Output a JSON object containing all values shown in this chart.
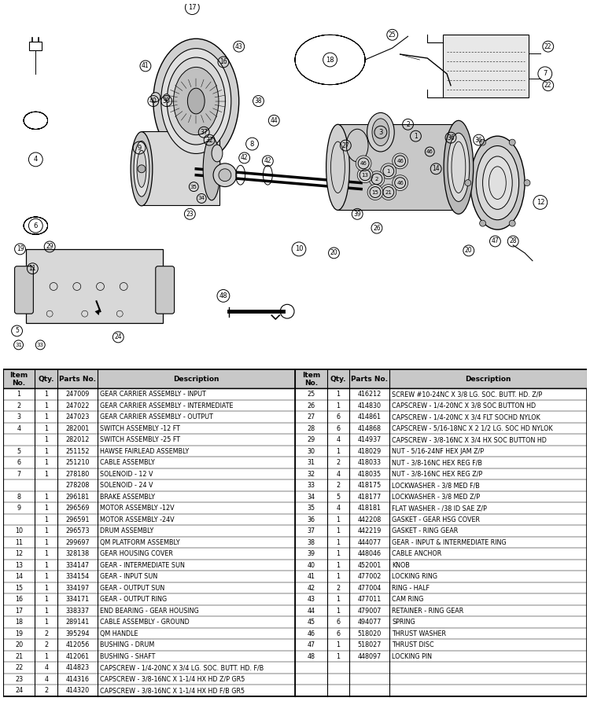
{
  "parts": [
    [
      1,
      1,
      "247009",
      "GEAR CARRIER ASSEMBLY - INPUT",
      25,
      1,
      "416212",
      "SCREW #10-24NC X 3/8 LG. SOC. BUTT. HD. Z/P"
    ],
    [
      2,
      1,
      "247022",
      "GEAR CARRIER ASSEMBLY - INTERMEDIATE",
      26,
      1,
      "414830",
      "CAPSCREW - 1/4-20NC X 3/8 SOC BUTTON HD"
    ],
    [
      3,
      1,
      "247023",
      "GEAR CARRIER ASSEMBLY - OUTPUT",
      27,
      6,
      "414861",
      "CAPSCREW - 1/4-20NC X 3/4 FLT SOCHD NYLOK"
    ],
    [
      "4",
      1,
      "282001",
      "SWITCH ASSEMBLY -12 FT",
      28,
      6,
      "414868",
      "CAPSCREW - 5/16-18NC X 2 1/2 LG. SOC HD NYLOK"
    ],
    [
      "",
      1,
      "282012",
      "SWITCH ASSEMBLY -25 FT",
      29,
      4,
      "414937",
      "CAPSCREW - 3/8-16NC X 3/4 HX SOC BUTTON HD"
    ],
    [
      5,
      1,
      "251152",
      "HAWSE FAIRLEAD ASSEMBLY",
      30,
      1,
      "418029",
      "NUT - 5/16-24NF HEX JAM Z/P"
    ],
    [
      6,
      1,
      "251210",
      "CABLE ASSEMBLY",
      31,
      2,
      "418033",
      "NUT - 3/8-16NC HEX REG F/B"
    ],
    [
      "7",
      1,
      "278180",
      "SOLENOID - 12 V",
      32,
      4,
      "418035",
      "NUT - 3/8-16NC HEX REG Z/P"
    ],
    [
      "",
      "",
      "278208",
      "SOLENOID - 24 V",
      33,
      2,
      "418175",
      "LOCKWASHER - 3/8 MED F/B"
    ],
    [
      8,
      1,
      "296181",
      "BRAKE ASSEMBLY",
      34,
      5,
      "418177",
      "LOCKWASHER - 3/8 MED Z/P"
    ],
    [
      "9",
      1,
      "296569",
      "MOTOR ASSEMBLY -12V",
      35,
      4,
      "418181",
      "FLAT WASHER - /38 ID SAE Z/P"
    ],
    [
      "",
      1,
      "296591",
      "MOTOR ASSEMBLY -24V",
      36,
      1,
      "442208",
      "GASKET - GEAR HSG COVER"
    ],
    [
      10,
      1,
      "296573",
      "DRUM ASSEMBLY",
      37,
      1,
      "442219",
      "GASKET - RING GEAR"
    ],
    [
      11,
      1,
      "299697",
      "QM PLATFORM ASSEMBLY",
      38,
      1,
      "444077",
      "GEAR - INPUT & INTERMEDIATE RING"
    ],
    [
      12,
      1,
      "328138",
      "GEAR HOUSING COVER",
      39,
      1,
      "448046",
      "CABLE ANCHOR"
    ],
    [
      13,
      1,
      "334147",
      "GEAR - INTERMEDIATE SUN",
      40,
      1,
      "452001",
      "KNOB"
    ],
    [
      14,
      1,
      "334154",
      "GEAR - INPUT SUN",
      41,
      1,
      "477002",
      "LOCKING RING"
    ],
    [
      15,
      1,
      "334197",
      "GEAR - OUTPUT SUN",
      42,
      2,
      "477004",
      "RING - HALF"
    ],
    [
      16,
      1,
      "334171",
      "GEAR - OUTPUT RING",
      43,
      1,
      "477011",
      "CAM RING"
    ],
    [
      17,
      1,
      "338337",
      "END BEARING - GEAR HOUSING",
      44,
      1,
      "479007",
      "RETAINER - RING GEAR"
    ],
    [
      18,
      1,
      "289141",
      "CABLE ASSEMBLY - GROUND",
      45,
      6,
      "494077",
      "SPRING"
    ],
    [
      19,
      2,
      "395294",
      "QM HANDLE",
      46,
      6,
      "518020",
      "THRUST WASHER"
    ],
    [
      20,
      2,
      "412056",
      "BUSHING - DRUM",
      47,
      1,
      "518027",
      "THRUST DISC"
    ],
    [
      21,
      1,
      "412061",
      "BUSHING - SHAFT",
      48,
      1,
      "448097",
      "LOCKING PIN"
    ],
    [
      22,
      4,
      "414823",
      "CAPSCREW - 1/4-20NC X 3/4 LG. SOC. BUTT. HD. F/B",
      "",
      "",
      "",
      ""
    ],
    [
      23,
      4,
      "414316",
      "CAPSCREW - 3/8-16NC X 1-1/4 HX HD Z/P GR5",
      "",
      "",
      "",
      ""
    ],
    [
      24,
      2,
      "414320",
      "CAPSCREW - 3/8-16NC X 1-1/4 HX HD F/B GR5",
      "",
      "",
      "",
      ""
    ]
  ],
  "header_bg": "#c8c8c8",
  "bg_color": "#ffffff"
}
